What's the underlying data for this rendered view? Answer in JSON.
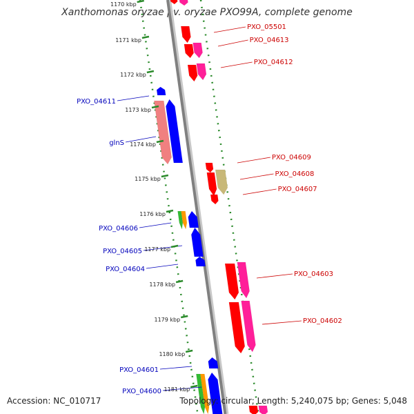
{
  "title": "Xanthomonas oryzae pv. oryzae PXO99A, complete genome",
  "footer": {
    "accession": "Accession: NC_010717",
    "topology": "Topology: circular; Length: 5,240,075 bp; Genes: 5,048"
  },
  "colors": {
    "backbone": "#808080",
    "ruler_tick": "#2a8a2a",
    "forward_label": "#cc0000",
    "reverse_label": "#0000bb",
    "red_gene": "#ff0000",
    "pink_gene": "#ff1f99",
    "blue_gene": "#0000ff",
    "salmon_gene": "#f08080",
    "khaki_gene": "#c8b878",
    "green_gene": "#33bb33",
    "orange_gene": "#ff9900"
  },
  "ruler": {
    "ticks": [
      "1170 kbp",
      "1171 kbp",
      "1172 kbp",
      "1173 kbp",
      "1174 kbp",
      "1175 kbp",
      "1176 kbp",
      "1177 kbp",
      "1178 kbp",
      "1179 kbp",
      "1180 kbp",
      "1181 kbp"
    ]
  },
  "forward_genes": [
    "PXO_05501",
    "PXO_04613",
    "PXO_04612",
    "PXO_04609",
    "PXO_04608",
    "PXO_04607",
    "PXO_04603",
    "PXO_04602"
  ],
  "reverse_genes": [
    "PXO_04611",
    "glnS",
    "PXO_04606",
    "PXO_04605",
    "PXO_04604",
    "PXO_04601",
    "PXO_04600"
  ]
}
